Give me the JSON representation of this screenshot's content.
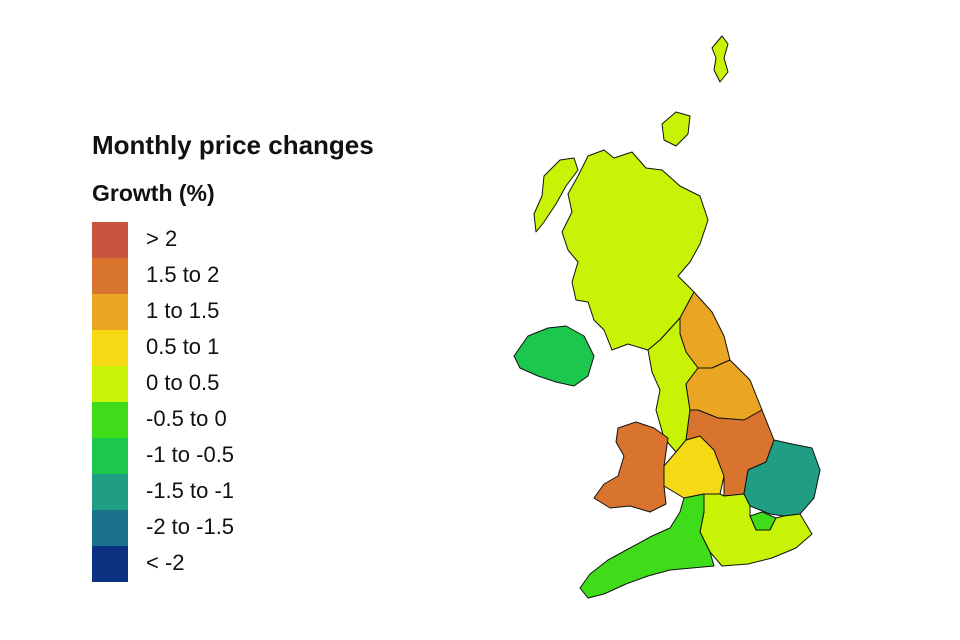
{
  "legend": {
    "title": "Monthly price changes",
    "subtitle": "Growth (%)",
    "items": [
      {
        "label": "> 2",
        "color": "#c9553e"
      },
      {
        "label": "1.5 to 2",
        "color": "#d9742e"
      },
      {
        "label": "1 to 1.5",
        "color": "#eaa622"
      },
      {
        "label": "0.5 to 1",
        "color": "#f6d915"
      },
      {
        "label": "0 to 0.5",
        "color": "#c6f306"
      },
      {
        "label": "-0.5 to 0",
        "color": "#3fdc1a"
      },
      {
        "label": "-1 to -0.5",
        "color": "#1cc74e"
      },
      {
        "label": "-1.5 to -1",
        "color": "#1f9e83"
      },
      {
        "label": "-2 to -1.5",
        "color": "#19718a"
      },
      {
        "label": "< -2",
        "color": "#0d3181"
      }
    ]
  },
  "regions": [
    {
      "name": "Scotland",
      "band": "0 to 0.5",
      "color": "#c6f306"
    },
    {
      "name": "Northern Ireland",
      "band": "-1 to -0.5",
      "color": "#1cc74e"
    },
    {
      "name": "North East",
      "band": "1 to 1.5",
      "color": "#eaa622"
    },
    {
      "name": "North West",
      "band": "0 to 0.5",
      "color": "#c6f306"
    },
    {
      "name": "Yorkshire and The Humber",
      "band": "1 to 1.5",
      "color": "#eaa622"
    },
    {
      "name": "East Midlands",
      "band": "1.5 to 2",
      "color": "#d9742e"
    },
    {
      "name": "West Midlands",
      "band": "0.5 to 1",
      "color": "#f6d915"
    },
    {
      "name": "Wales",
      "band": "1.5 to 2",
      "color": "#d9742e"
    },
    {
      "name": "East",
      "band": "-1.5 to -1",
      "color": "#1f9e83"
    },
    {
      "name": "London",
      "band": "-0.5 to 0",
      "color": "#3fdc1a"
    },
    {
      "name": "South East",
      "band": "0 to 0.5",
      "color": "#c6f306"
    },
    {
      "name": "South West",
      "band": "-0.5 to 0",
      "color": "#3fdc1a"
    }
  ]
}
